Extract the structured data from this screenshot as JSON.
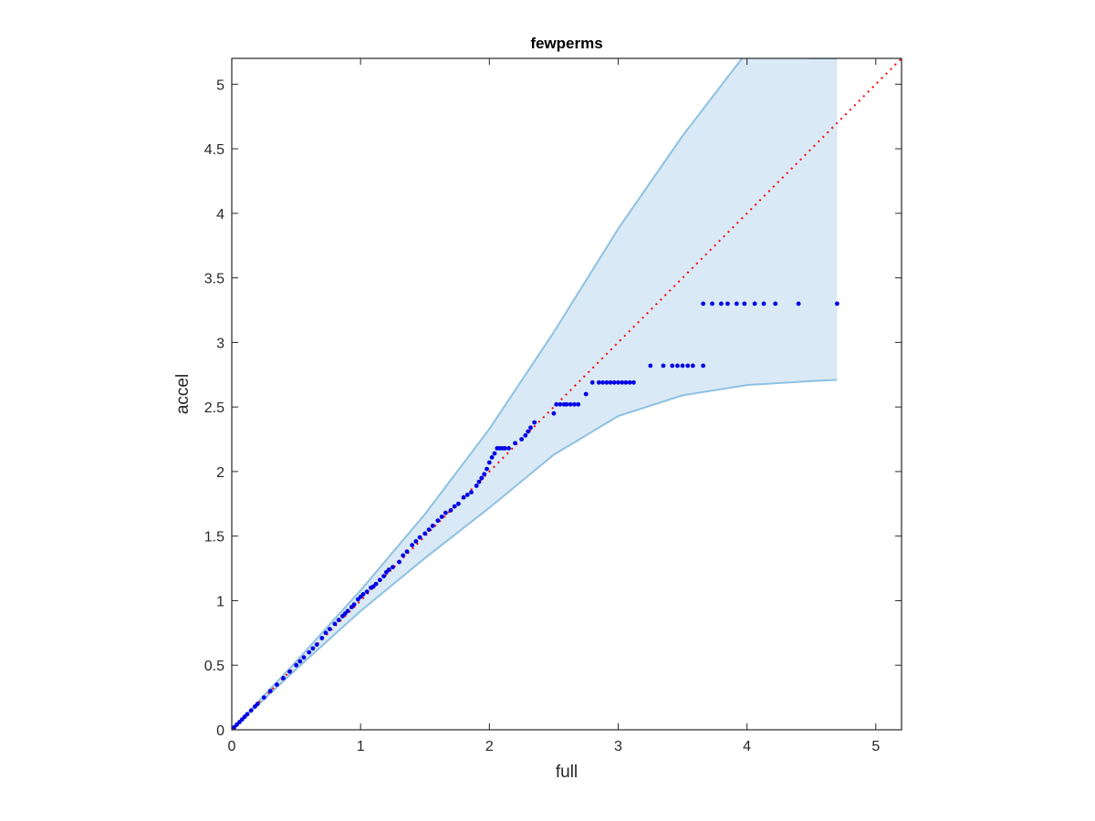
{
  "chart_data": {
    "type": "scatter",
    "title": "fewperms",
    "xlabel": "full",
    "ylabel": "accel",
    "xlim": [
      0,
      5.2
    ],
    "ylim": [
      0,
      5.2
    ],
    "xticks": [
      0,
      1,
      2,
      3,
      4,
      5
    ],
    "yticks": [
      0,
      0.5,
      1,
      1.5,
      2,
      2.5,
      3,
      3.5,
      4,
      4.5,
      5
    ],
    "grid": false,
    "legend": "none",
    "colors": {
      "points": "#0000e6",
      "reference_line": "#ff0000",
      "band_fill": "#d9e9f5",
      "band_edge": "#8fc1e2",
      "axes": "#262626"
    },
    "series": [
      {
        "kind": "band",
        "x": [
          0,
          0.5,
          1.0,
          1.5,
          2.0,
          2.5,
          3.0,
          3.5,
          4.0,
          4.5,
          4.7
        ],
        "upper": [
          0,
          0.53,
          1.08,
          1.67,
          2.33,
          3.08,
          3.88,
          4.6,
          5.25,
          5.2,
          5.2
        ],
        "lower": [
          0,
          0.47,
          0.92,
          1.33,
          1.72,
          2.13,
          2.43,
          2.59,
          2.67,
          2.7,
          2.71
        ]
      },
      {
        "kind": "line",
        "x": [
          0,
          5.2
        ],
        "y": [
          0,
          5.2
        ]
      },
      {
        "kind": "points",
        "x": [
          0.02,
          0.04,
          0.06,
          0.08,
          0.1,
          0.12,
          0.15,
          0.18,
          0.2,
          0.25,
          0.3,
          0.35,
          0.4,
          0.45,
          0.5,
          0.53,
          0.56,
          0.6,
          0.63,
          0.66,
          0.7,
          0.73,
          0.76,
          0.8,
          0.83,
          0.86,
          0.88,
          0.9,
          0.93,
          0.95,
          0.98,
          1.0,
          1.02,
          1.05,
          1.08,
          1.1,
          1.12,
          1.15,
          1.18,
          1.2,
          1.22,
          1.25,
          1.3,
          1.33,
          1.36,
          1.4,
          1.43,
          1.46,
          1.5,
          1.53,
          1.56,
          1.6,
          1.63,
          1.66,
          1.7,
          1.73,
          1.76,
          1.8,
          1.83,
          1.86,
          1.9,
          1.92,
          1.94,
          1.96,
          1.98,
          2.0,
          2.02,
          2.04,
          2.06,
          2.08,
          2.1,
          2.12,
          2.15,
          2.2,
          2.25,
          2.28,
          2.3,
          2.32,
          2.35,
          2.5,
          2.52,
          2.55,
          2.58,
          2.6,
          2.63,
          2.66,
          2.69,
          2.75,
          2.8,
          2.85,
          2.88,
          2.91,
          2.94,
          2.97,
          3.0,
          3.03,
          3.06,
          3.09,
          3.12,
          3.25,
          3.35,
          3.42,
          3.46,
          3.5,
          3.54,
          3.58,
          3.66,
          3.66,
          3.73,
          3.8,
          3.85,
          3.92,
          3.98,
          4.06,
          4.13,
          4.22,
          4.4,
          4.7
        ],
        "y": [
          0.02,
          0.04,
          0.06,
          0.08,
          0.1,
          0.12,
          0.15,
          0.18,
          0.2,
          0.25,
          0.3,
          0.35,
          0.4,
          0.45,
          0.5,
          0.53,
          0.56,
          0.6,
          0.63,
          0.66,
          0.71,
          0.75,
          0.78,
          0.82,
          0.85,
          0.88,
          0.9,
          0.92,
          0.95,
          0.97,
          1.01,
          1.03,
          1.05,
          1.07,
          1.1,
          1.11,
          1.13,
          1.16,
          1.19,
          1.22,
          1.24,
          1.26,
          1.3,
          1.35,
          1.38,
          1.43,
          1.46,
          1.49,
          1.52,
          1.55,
          1.58,
          1.62,
          1.65,
          1.68,
          1.7,
          1.73,
          1.75,
          1.8,
          1.82,
          1.84,
          1.89,
          1.92,
          1.95,
          1.98,
          2.02,
          2.07,
          2.11,
          2.14,
          2.18,
          2.18,
          2.18,
          2.18,
          2.18,
          2.22,
          2.25,
          2.28,
          2.31,
          2.34,
          2.38,
          2.45,
          2.52,
          2.52,
          2.52,
          2.52,
          2.52,
          2.52,
          2.52,
          2.6,
          2.69,
          2.69,
          2.69,
          2.69,
          2.69,
          2.69,
          2.69,
          2.69,
          2.69,
          2.69,
          2.69,
          2.82,
          2.82,
          2.82,
          2.82,
          2.82,
          2.82,
          2.82,
          2.82,
          3.3,
          3.3,
          3.3,
          3.3,
          3.3,
          3.3,
          3.3,
          3.3,
          3.3,
          3.3,
          3.3
        ]
      }
    ]
  }
}
